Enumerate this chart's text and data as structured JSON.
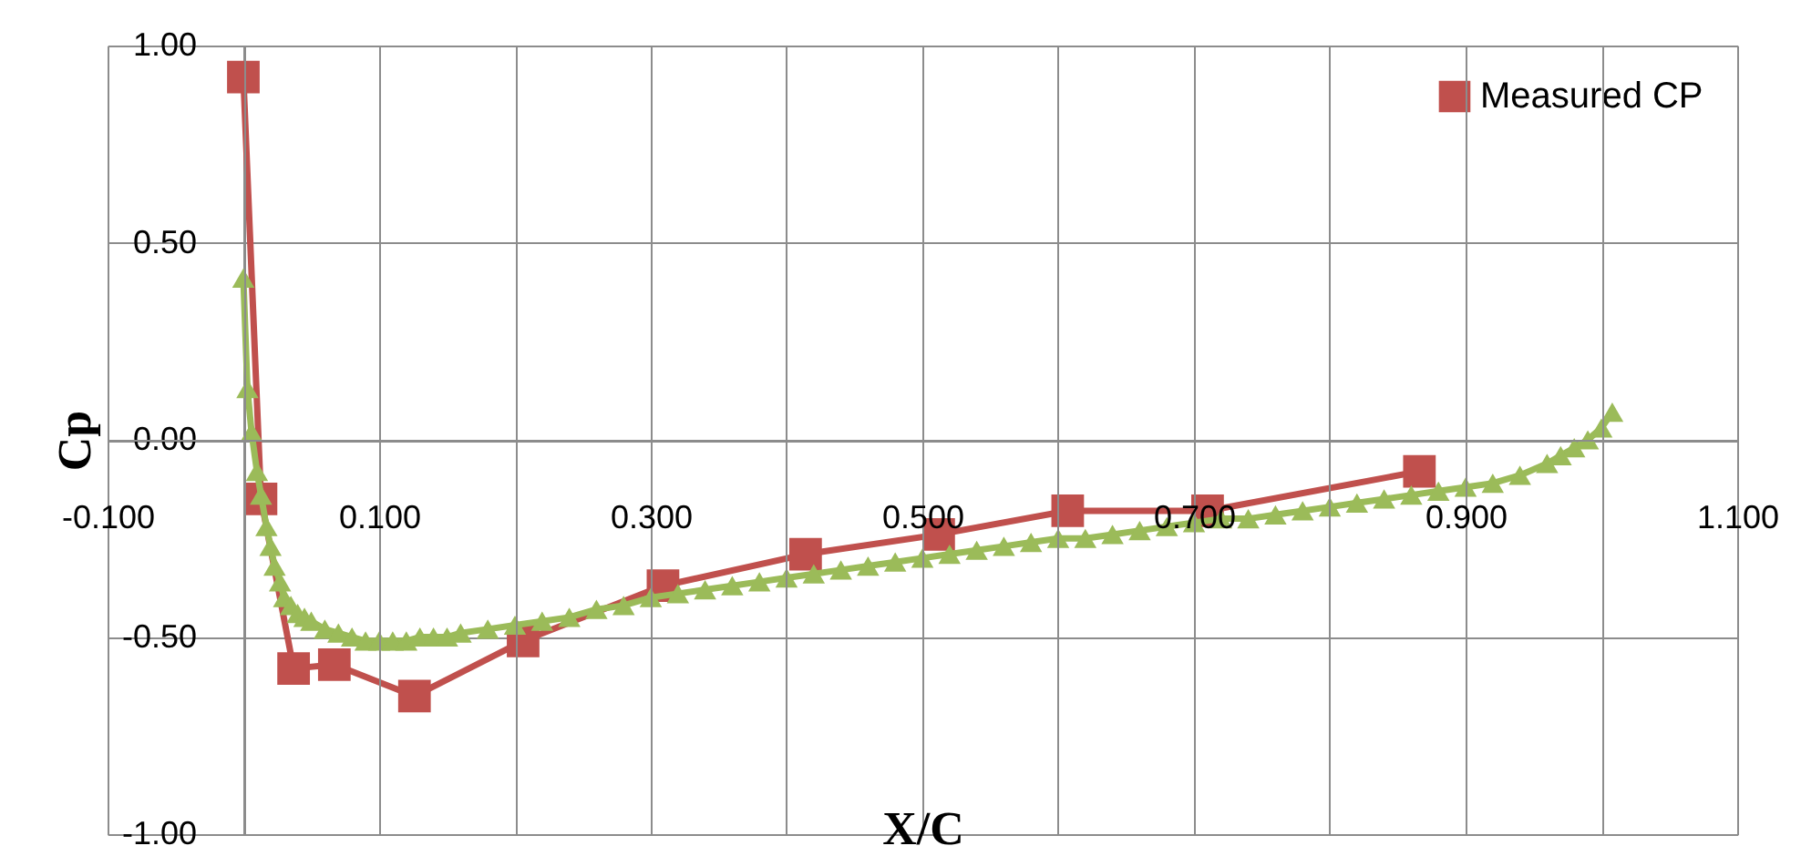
{
  "chart_data": {
    "type": "line",
    "xlabel": "X/C",
    "ylabel": "Cp",
    "xlim": [
      -0.1,
      1.1
    ],
    "ylim": [
      -1.0,
      1.0
    ],
    "xticks": [
      {
        "value": -0.1,
        "label": "-0.100"
      },
      {
        "value": 0,
        "label": null
      },
      {
        "value": 0.1,
        "label": "0.100"
      },
      {
        "value": 0.2,
        "label": null
      },
      {
        "value": 0.3,
        "label": "0.300"
      },
      {
        "value": 0.4,
        "label": null
      },
      {
        "value": 0.5,
        "label": "0.500"
      },
      {
        "value": 0.6,
        "label": null
      },
      {
        "value": 0.7,
        "label": "0.700"
      },
      {
        "value": 0.8,
        "label": null
      },
      {
        "value": 0.9,
        "label": "0.900"
      },
      {
        "value": 1.0,
        "label": null
      },
      {
        "value": 1.1,
        "label": "1.100"
      }
    ],
    "yticks": [
      {
        "value": -1,
        "label": "-1.00"
      },
      {
        "value": -0.5,
        "label": "-0.50"
      },
      {
        "value": 0,
        "label": "0.00"
      },
      {
        "value": 0.5,
        "label": "0.50"
      },
      {
        "value": 1,
        "label": "1.00"
      }
    ],
    "grid": true,
    "legend": "top right",
    "line_style": "solid",
    "series": [
      {
        "name": "Measured CP",
        "color": "#c0504d",
        "marker": "square",
        "x": [
          0,
          0.013,
          0.037,
          0.067,
          0.126,
          0.206,
          0.309,
          0.414,
          0.512,
          0.607,
          0.71,
          0.866
        ],
        "values": [
          0.92,
          -0.15,
          -0.58,
          -0.57,
          -0.65,
          -0.51,
          -0.37,
          -0.29,
          -0.24,
          -0.18,
          -0.18,
          -0.08
        ]
      },
      {
        "color": "#9bbb59",
        "marker": "triangle",
        "x": [
          0,
          0.003,
          0.006,
          0.01,
          0.013,
          0.017,
          0.02,
          0.023,
          0.027,
          0.03,
          0.035,
          0.04,
          0.045,
          0.05,
          0.06,
          0.07,
          0.08,
          0.09,
          0.1,
          0.11,
          0.12,
          0.13,
          0.14,
          0.15,
          0.16,
          0.18,
          0.2,
          0.22,
          0.24,
          0.26,
          0.28,
          0.3,
          0.32,
          0.34,
          0.36,
          0.38,
          0.4,
          0.42,
          0.44,
          0.46,
          0.48,
          0.5,
          0.52,
          0.54,
          0.56,
          0.58,
          0.6,
          0.62,
          0.64,
          0.66,
          0.68,
          0.7,
          0.72,
          0.74,
          0.76,
          0.78,
          0.8,
          0.82,
          0.84,
          0.86,
          0.88,
          0.9,
          0.92,
          0.94,
          0.96,
          0.97,
          0.98,
          0.99,
          1.0,
          1.008
        ],
        "values": [
          0.41,
          0.13,
          0.02,
          -0.08,
          -0.14,
          -0.22,
          -0.27,
          -0.32,
          -0.36,
          -0.4,
          -0.42,
          -0.44,
          -0.45,
          -0.46,
          -0.48,
          -0.49,
          -0.5,
          -0.51,
          -0.51,
          -0.51,
          -0.51,
          -0.5,
          -0.5,
          -0.5,
          -0.49,
          -0.48,
          -0.47,
          -0.46,
          -0.45,
          -0.43,
          -0.42,
          -0.4,
          -0.39,
          -0.38,
          -0.37,
          -0.36,
          -0.35,
          -0.34,
          -0.33,
          -0.32,
          -0.31,
          -0.3,
          -0.29,
          -0.28,
          -0.27,
          -0.26,
          -0.25,
          -0.25,
          -0.24,
          -0.23,
          -0.22,
          -0.21,
          -0.2,
          -0.2,
          -0.19,
          -0.18,
          -0.17,
          -0.16,
          -0.15,
          -0.14,
          -0.13,
          -0.12,
          -0.11,
          -0.09,
          -0.06,
          -0.04,
          -0.02,
          0.0,
          0.03,
          0.07
        ]
      }
    ]
  }
}
